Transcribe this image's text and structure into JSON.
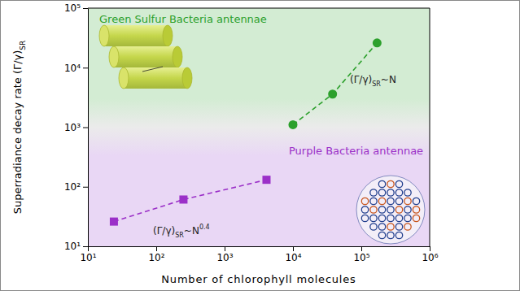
{
  "chart_data": {
    "type": "scatter",
    "xlabel": "Number of chlorophyll molecules",
    "ylabel": "Superradiance decay rate (Γ/γ)",
    "ylabel_subscript": "SR",
    "log": true,
    "xlim": [
      10,
      1000000
    ],
    "ylim": [
      10,
      100000
    ],
    "xticks": [
      {
        "value": 10,
        "label": "10¹"
      },
      {
        "value": 100,
        "label": "10²"
      },
      {
        "value": 1000,
        "label": "10³"
      },
      {
        "value": 10000,
        "label": "10⁴"
      },
      {
        "value": 100000,
        "label": "10⁵"
      },
      {
        "value": 1000000,
        "label": "10⁶"
      }
    ],
    "yticks": [
      {
        "value": 10,
        "label": "10¹"
      },
      {
        "value": 100,
        "label": "10²"
      },
      {
        "value": 1000,
        "label": "10³"
      },
      {
        "value": 10000,
        "label": "10⁴"
      },
      {
        "value": 100000,
        "label": "10⁵"
      }
    ],
    "series": [
      {
        "name": "Green Sulfur Bacteria antennae",
        "color": "#2ca02c",
        "marker": "circle",
        "line_style": "dashed",
        "x": [
          10000,
          38000,
          170000
        ],
        "values": [
          1100,
          3600,
          26000
        ],
        "fit_label": {
          "text": "(Γ/γ)",
          "subscript": "SR",
          "suffix": "~N"
        }
      },
      {
        "name": "Purple Bacteria antennae",
        "color": "#9b30c8",
        "marker": "square",
        "line_style": "dashed",
        "x": [
          24,
          250,
          4100
        ],
        "values": [
          26,
          61,
          131
        ],
        "fit_label": {
          "text": "(Γ/γ)",
          "subscript": "SR",
          "suffix": "~N",
          "superscript": "0.4"
        }
      }
    ]
  }
}
